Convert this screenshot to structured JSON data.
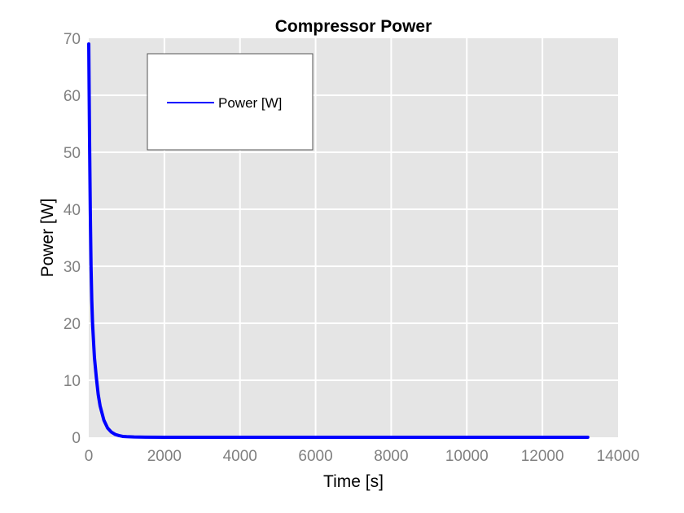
{
  "chart_data": {
    "type": "line",
    "title": "Compressor Power",
    "xlabel": "Time [s]",
    "ylabel": "Power [W]",
    "xlim": [
      0,
      14000
    ],
    "ylim": [
      0,
      70
    ],
    "xticks": [
      0,
      2000,
      4000,
      6000,
      8000,
      10000,
      12000,
      14000
    ],
    "yticks": [
      0,
      10,
      20,
      30,
      40,
      50,
      60,
      70
    ],
    "grid": true,
    "legend": {
      "position": "top-left",
      "entries": [
        "Power [W]"
      ]
    },
    "series": [
      {
        "name": "Power [W]",
        "color": "#0000ff",
        "x": [
          0,
          10,
          20,
          40,
          60,
          80,
          100,
          150,
          200,
          250,
          300,
          400,
          500,
          600,
          700,
          800,
          900,
          1000,
          1200,
          1500,
          2000,
          4000,
          6000,
          8000,
          10000,
          12000,
          13200
        ],
        "y": [
          69,
          61,
          53,
          40,
          30,
          24,
          20,
          14,
          10.5,
          7.5,
          5.5,
          3.0,
          1.6,
          0.9,
          0.5,
          0.3,
          0.15,
          0.1,
          0.05,
          0.02,
          0,
          0,
          0,
          0,
          0,
          0,
          0
        ]
      }
    ]
  },
  "colors": {
    "plot_background": "#e5e5e5",
    "grid": "#ffffff",
    "tick_text": "#808080",
    "line": "#0000ff"
  }
}
